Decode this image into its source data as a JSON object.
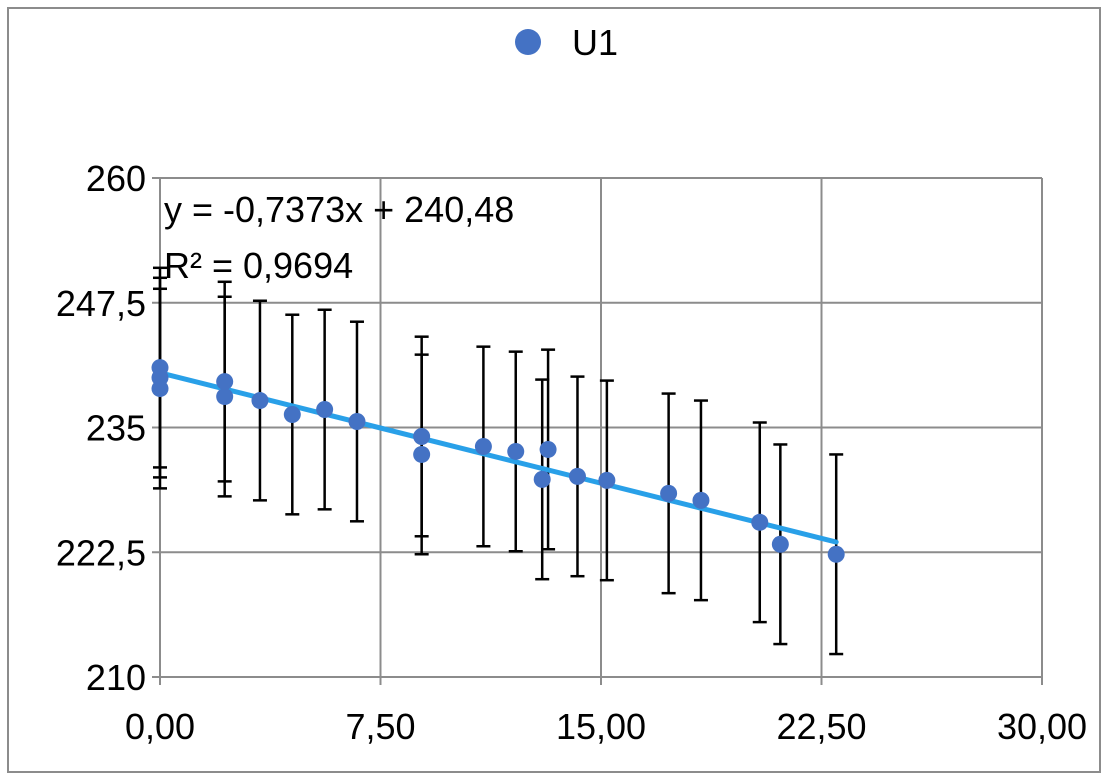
{
  "chart_data": {
    "type": "scatter",
    "title": "",
    "xlabel": "",
    "ylabel": "",
    "xlim": [
      0,
      30
    ],
    "ylim": [
      210,
      260
    ],
    "x_ticks": [
      0,
      7.5,
      15,
      22.5,
      30
    ],
    "x_tick_labels": [
      "0,00",
      "7,50",
      "15,00",
      "22,50",
      "30,00"
    ],
    "y_ticks": [
      210,
      222.5,
      235,
      247.5,
      260
    ],
    "y_tick_labels": [
      "210",
      "222,5",
      "235",
      "247,5",
      "260"
    ],
    "grid": true,
    "legend_position": "top",
    "series": [
      {
        "name": "U1",
        "color": "#4472C4",
        "points": [
          {
            "x": 0.0,
            "y": 241.0,
            "err": 10.0
          },
          {
            "x": 0.0,
            "y": 240.0,
            "err": 10.0
          },
          {
            "x": 0.0,
            "y": 238.9,
            "err": 10.0
          },
          {
            "x": 2.2,
            "y": 239.6,
            "err": 10.0
          },
          {
            "x": 2.2,
            "y": 238.1,
            "err": 10.0
          },
          {
            "x": 3.4,
            "y": 237.7,
            "err": 10.0
          },
          {
            "x": 4.5,
            "y": 236.3,
            "err": 10.0
          },
          {
            "x": 5.6,
            "y": 236.8,
            "err": 10.0
          },
          {
            "x": 6.7,
            "y": 235.6,
            "err": 10.0
          },
          {
            "x": 8.9,
            "y": 234.1,
            "err": 10.0
          },
          {
            "x": 8.9,
            "y": 232.3,
            "err": 10.0
          },
          {
            "x": 11.0,
            "y": 233.1,
            "err": 10.0
          },
          {
            "x": 12.1,
            "y": 232.6,
            "err": 10.0
          },
          {
            "x": 13.0,
            "y": 229.8,
            "err": 10.0
          },
          {
            "x": 13.2,
            "y": 232.8,
            "err": 10.0
          },
          {
            "x": 14.2,
            "y": 230.1,
            "err": 10.0
          },
          {
            "x": 15.2,
            "y": 229.7,
            "err": 10.0
          },
          {
            "x": 17.3,
            "y": 228.4,
            "err": 10.0
          },
          {
            "x": 18.4,
            "y": 227.7,
            "err": 10.0
          },
          {
            "x": 20.4,
            "y": 225.5,
            "err": 10.0
          },
          {
            "x": 21.1,
            "y": 223.3,
            "err": 10.0
          },
          {
            "x": 23.0,
            "y": 222.3,
            "err": 10.0
          }
        ]
      }
    ],
    "trendline": {
      "type": "linear",
      "color": "#29A0E8",
      "x_range": [
        0,
        23.0
      ],
      "slope": -0.7373,
      "intercept": 240.48,
      "equation_label": "y = -0,7373x + 240,48",
      "r2_label": "R² = 0,9694"
    }
  }
}
